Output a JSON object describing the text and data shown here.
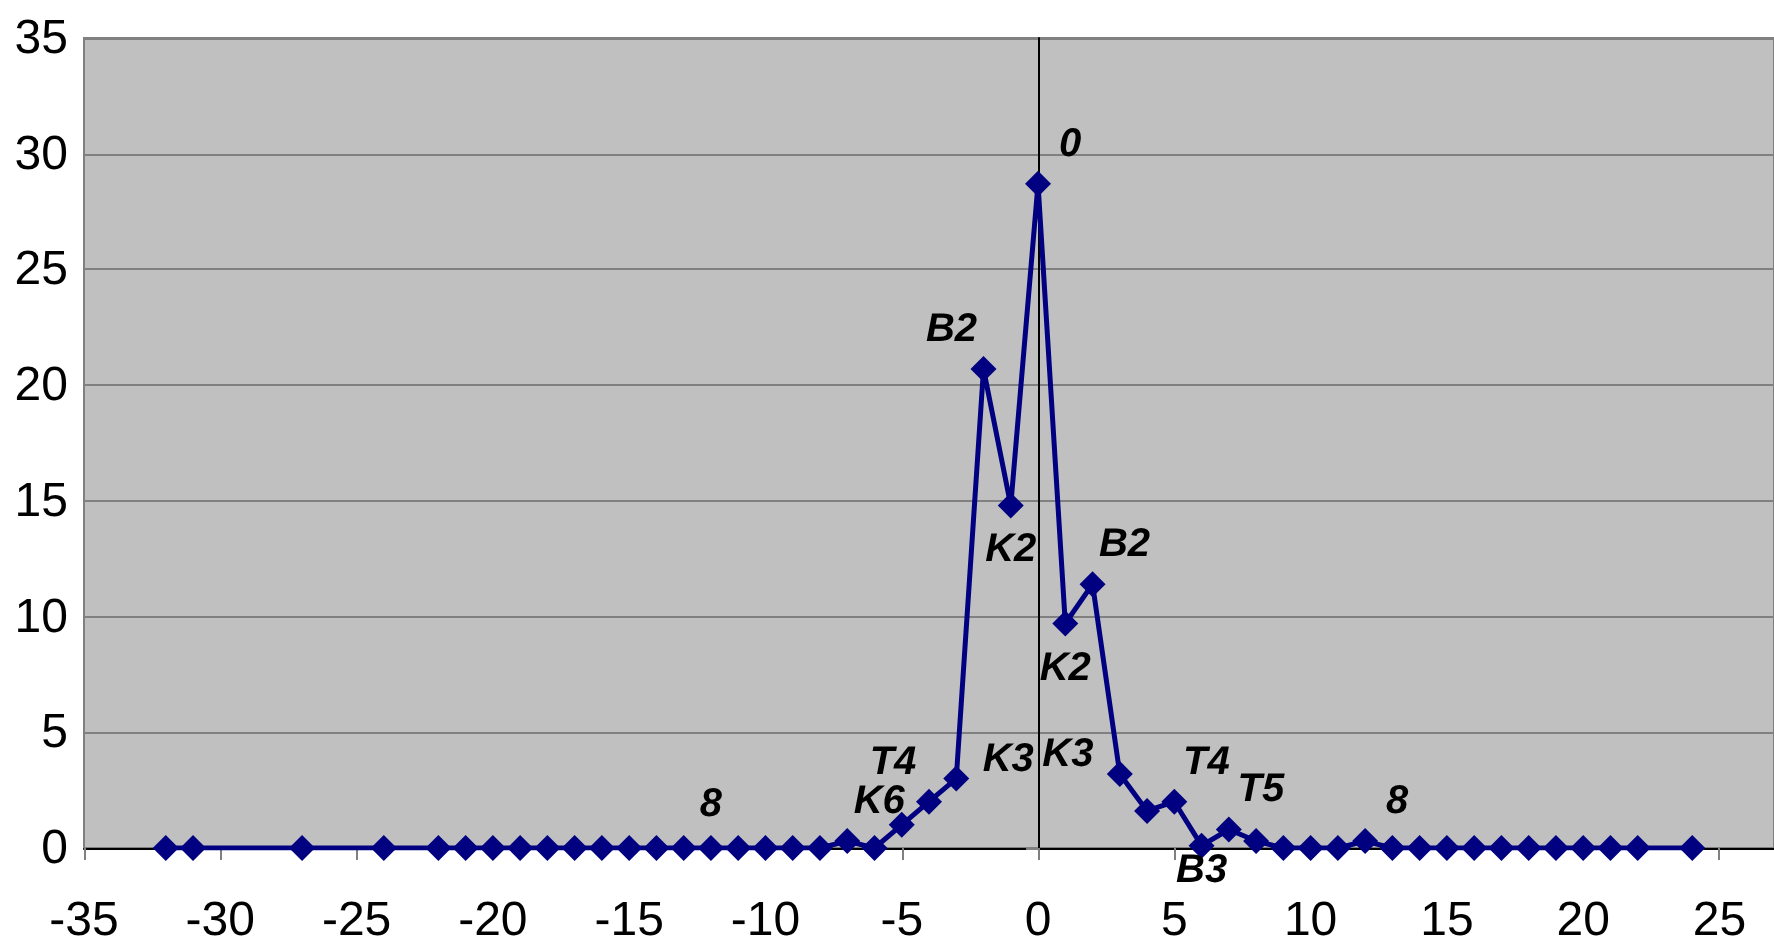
{
  "chart_data": {
    "type": "line",
    "x": [
      -32,
      -31,
      -27,
      -24,
      -22,
      -21,
      -20,
      -19,
      -18,
      -17,
      -16,
      -15,
      -14,
      -13,
      -12,
      -11,
      -10,
      -9,
      -8,
      -7,
      -6,
      -5,
      -4,
      -3,
      -2,
      -1,
      0,
      1,
      2,
      3,
      4,
      5,
      6,
      7,
      8,
      9,
      10,
      11,
      12,
      13,
      14,
      15,
      16,
      17,
      18,
      19,
      20,
      21,
      22,
      24
    ],
    "series": [
      {
        "color": "#000080",
        "values": [
          0,
          0,
          0,
          0,
          0,
          0,
          0,
          0,
          0,
          0,
          0,
          0,
          0,
          0,
          0,
          0,
          0,
          0,
          0,
          0.3,
          0,
          1,
          2,
          3,
          20.7,
          14.8,
          28.7,
          9.7,
          11.4,
          3.2,
          1.6,
          2,
          0.1,
          0.8,
          0.3,
          0,
          0,
          0,
          0.3,
          0,
          0,
          0,
          0,
          0,
          0,
          0,
          0,
          0,
          0,
          0
        ]
      }
    ],
    "xlim": [
      -35,
      27
    ],
    "xticks": [
      -35,
      -30,
      -25,
      -20,
      -15,
      -10,
      -5,
      0,
      5,
      10,
      15,
      20,
      25
    ],
    "ylim": [
      0,
      35
    ],
    "yticks": [
      0,
      5,
      10,
      15,
      20,
      25,
      30,
      35
    ],
    "grid": "y",
    "marker": "diamond",
    "line_style": "solid",
    "annotations": [
      {
        "text": "0",
        "x": 0,
        "y": 28.7
      },
      {
        "text": "B2",
        "x": -2,
        "y": 20.7
      },
      {
        "text": "K2",
        "x": -1,
        "y": 14.8
      },
      {
        "text": "K2",
        "x": 1,
        "y": 9.7
      },
      {
        "text": "B2",
        "x": 2,
        "y": 11.4
      },
      {
        "text": "K3",
        "x": -3,
        "y": 3
      },
      {
        "text": "T4",
        "x": -4,
        "y": 2
      },
      {
        "text": "K6",
        "x": -7,
        "y": 0.3
      },
      {
        "text": "8",
        "x": -12,
        "y": 0
      },
      {
        "text": "K3",
        "x": 3,
        "y": 3.2
      },
      {
        "text": "T4",
        "x": 5,
        "y": 2
      },
      {
        "text": "B3",
        "x": 6,
        "y": 0.1
      },
      {
        "text": "T5",
        "x": 7,
        "y": 0.8
      },
      {
        "text": "8",
        "x": 12,
        "y": 0.3
      }
    ]
  }
}
